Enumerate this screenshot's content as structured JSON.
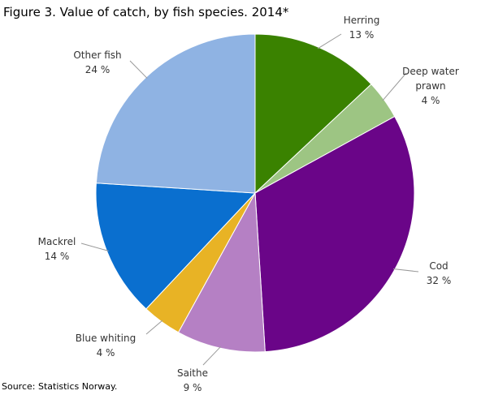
{
  "chart_data": {
    "type": "pie",
    "title": "Figure 3. Value of catch, by fish species. 2014*",
    "source": "Source: Statistics Norway.",
    "categories": [
      "Herring",
      "Deep water prawn",
      "Cod",
      "Saithe",
      "Blue whiting",
      "Mackrel",
      "Other fish"
    ],
    "values": [
      13,
      4,
      32,
      9,
      4,
      14,
      24
    ],
    "value_labels": [
      "13 %",
      "4 %",
      "32 %",
      "9 %",
      "4 %",
      "14 %",
      "24 %"
    ],
    "colors": [
      "#3a8200",
      "#9dc583",
      "#6a0588",
      "#b580c4",
      "#e8b325",
      "#0a6fcf",
      "#8fb3e3"
    ]
  }
}
